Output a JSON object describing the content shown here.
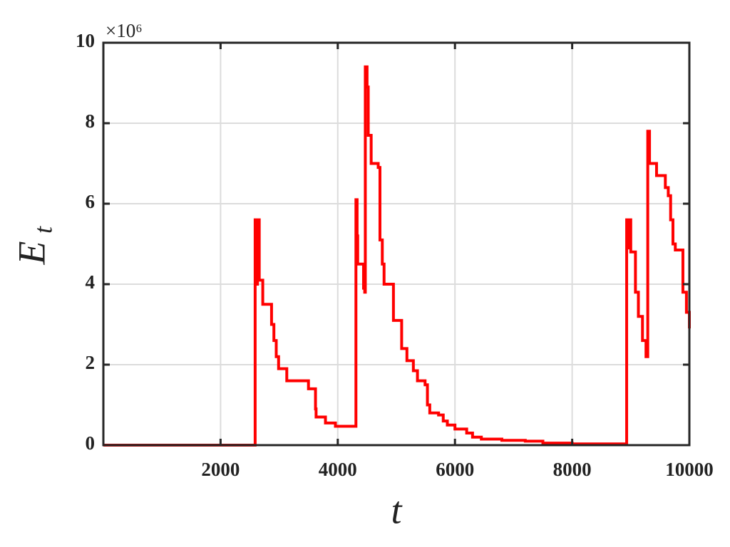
{
  "chart_data": {
    "type": "line",
    "step": "post",
    "x_label": "t",
    "y_label": "E",
    "y_label_subscript": "t",
    "y_scale_label": "×10⁶",
    "x": [
      0,
      2590,
      2620,
      2630,
      2660,
      2720,
      2870,
      2910,
      2950,
      2990,
      3130,
      3500,
      3620,
      3630,
      3790,
      3960,
      4310,
      4330,
      4340,
      4440,
      4460,
      4470,
      4500,
      4520,
      4570,
      4690,
      4720,
      4760,
      4790,
      4950,
      5090,
      5180,
      5290,
      5360,
      5490,
      5530,
      5570,
      5720,
      5800,
      5870,
      6000,
      6200,
      6300,
      6450,
      6800,
      7200,
      7500,
      8000,
      8930,
      8950,
      8970,
      9000,
      9080,
      9130,
      9200,
      9260,
      9290,
      9320,
      9440,
      9590,
      9640,
      9680,
      9720,
      9760,
      9890,
      9950,
      10000
    ],
    "series": [
      {
        "name": "E_t",
        "color": "#ff0000",
        "values": [
          0,
          5.6,
          4.0,
          5.6,
          4.1,
          3.5,
          3.0,
          2.6,
          2.2,
          1.9,
          1.6,
          1.4,
          0.9,
          0.7,
          0.55,
          0.47,
          6.1,
          5.2,
          4.5,
          3.9,
          3.8,
          9.4,
          8.9,
          7.7,
          7.0,
          6.9,
          5.1,
          4.5,
          4.0,
          3.1,
          2.4,
          2.1,
          1.85,
          1.6,
          1.5,
          1.0,
          0.8,
          0.75,
          0.6,
          0.5,
          0.4,
          0.3,
          0.2,
          0.15,
          0.12,
          0.1,
          0.05,
          0.03,
          5.6,
          4.9,
          5.6,
          4.8,
          3.8,
          3.2,
          2.6,
          2.2,
          7.8,
          7.0,
          6.7,
          6.4,
          6.2,
          5.6,
          5.0,
          4.85,
          3.8,
          3.3,
          2.9
        ]
      }
    ],
    "xlim": [
      0,
      10000
    ],
    "ylim": [
      0,
      10
    ],
    "xticks": [
      2000,
      4000,
      6000,
      8000,
      10000
    ],
    "yticks": [
      0,
      2,
      4,
      6,
      8,
      10
    ],
    "grid": true
  }
}
